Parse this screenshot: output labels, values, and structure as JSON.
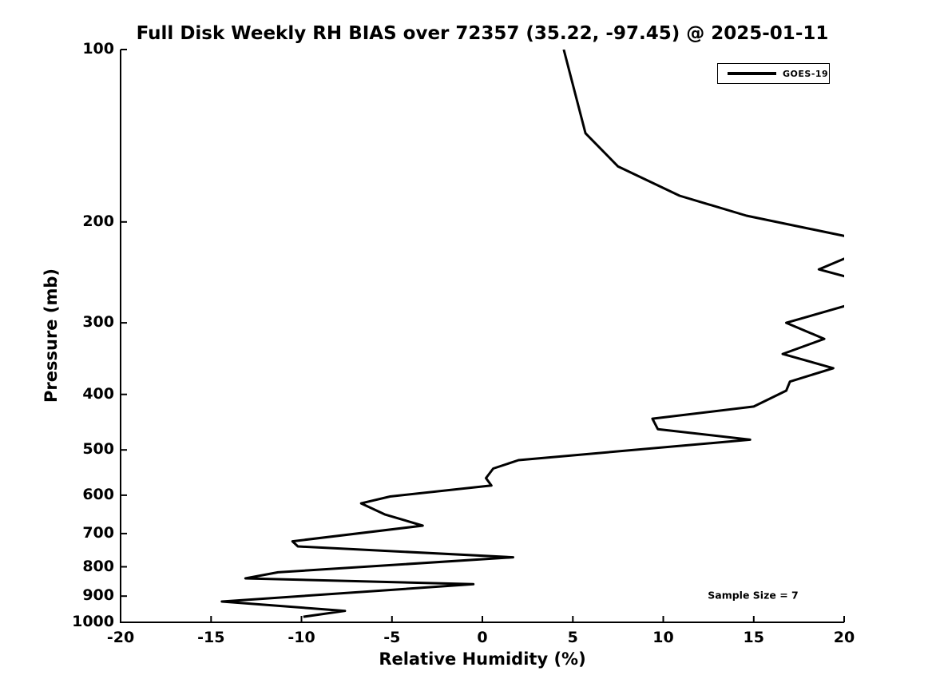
{
  "chart_data": {
    "type": "line",
    "title": "Full Disk Weekly RH BIAS over 72357 (35.22, -97.45) @ 2025-01-11",
    "xlabel": "Relative Humidity (%)",
    "ylabel": "Pressure (mb)",
    "xlim": [
      -20,
      20
    ],
    "ylim": [
      100,
      1000
    ],
    "yscale": "log",
    "y_inverted": true,
    "grid": false,
    "xticks": [
      -20,
      -15,
      -10,
      -5,
      0,
      5,
      10,
      15,
      20
    ],
    "xtick_labels": [
      "-20",
      "-15",
      "-10",
      "-5",
      "0",
      "5",
      "10",
      "15",
      "20"
    ],
    "yticks": [
      100,
      200,
      300,
      400,
      500,
      600,
      700,
      800,
      900,
      1000
    ],
    "ytick_labels": [
      "100",
      "200",
      "300",
      "400",
      "500",
      "600",
      "700",
      "800",
      "900",
      "1000"
    ],
    "background_color": "#ffffff",
    "axis_color": "#000000",
    "legend": {
      "position": "upper right",
      "label": "GOES-19"
    },
    "annotation": "Sample Size = 7",
    "series": [
      {
        "name": "GOES-19",
        "color": "#000000",
        "line_width": 3,
        "note": "points are [pressure_mb, rh_bias_percent]; values above 20% are clipped at the right axis edge",
        "points_pressure_rh": [
          [
            100,
            4.5
          ],
          [
            140,
            5.7
          ],
          [
            160,
            7.5
          ],
          [
            180,
            10.9
          ],
          [
            195,
            14.6
          ],
          [
            218,
            22.0
          ],
          [
            242,
            18.6
          ],
          [
            255,
            21.3
          ],
          [
            272,
            21.5
          ],
          [
            300,
            16.8
          ],
          [
            320,
            18.9
          ],
          [
            340,
            16.6
          ],
          [
            360,
            19.4
          ],
          [
            380,
            17.0
          ],
          [
            394,
            16.8
          ],
          [
            420,
            15.0
          ],
          [
            441,
            9.4
          ],
          [
            460,
            9.7
          ],
          [
            480,
            14.8
          ],
          [
            521,
            2.0
          ],
          [
            539,
            0.6
          ],
          [
            560,
            0.2
          ],
          [
            577,
            0.5
          ],
          [
            603,
            -5.1
          ],
          [
            620,
            -6.7
          ],
          [
            648,
            -5.4
          ],
          [
            678,
            -3.3
          ],
          [
            722,
            -10.5
          ],
          [
            737,
            -10.2
          ],
          [
            770,
            1.7
          ],
          [
            818,
            -11.3
          ],
          [
            838,
            -13.1
          ],
          [
            858,
            -0.5
          ],
          [
            920,
            -14.4
          ],
          [
            955,
            -7.6
          ],
          [
            978,
            -9.9
          ]
        ]
      }
    ]
  }
}
